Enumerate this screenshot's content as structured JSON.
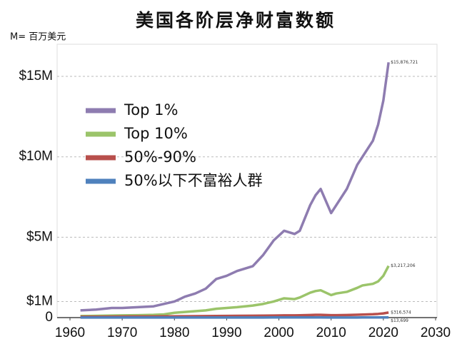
{
  "chart_data": {
    "type": "line",
    "title": "美国各阶层净财富数额",
    "subtitle": "M= 百万美元",
    "x": [
      1962,
      1965,
      1968,
      1970,
      1973,
      1976,
      1978,
      1980,
      1982,
      1984,
      1986,
      1988,
      1990,
      1992,
      1995,
      1997,
      1999,
      2001,
      2003,
      2004,
      2006,
      2007,
      2008,
      2010,
      2011,
      2013,
      2015,
      2016,
      2018,
      2019,
      2020,
      2021
    ],
    "xlim": [
      1960,
      2030
    ],
    "xticks": [
      1960,
      1970,
      1980,
      1990,
      2000,
      2010,
      2020,
      2030
    ],
    "ylim": [
      0,
      17000000
    ],
    "yticks": [
      0,
      {
        "value": 1000000,
        "label": "$1M"
      },
      {
        "value": 5000000,
        "label": "$5M"
      },
      {
        "value": 10000000,
        "label": "$10M"
      },
      {
        "value": 15000000,
        "label": "$15M"
      }
    ],
    "grid": true,
    "legend": "upper-left",
    "series": [
      {
        "name": "Top 1%",
        "color": "#8e7cb0",
        "values": [
          450000,
          500000,
          600000,
          600000,
          650000,
          700000,
          850000,
          1000000,
          1300000,
          1500000,
          1800000,
          2400000,
          2600000,
          2900000,
          3200000,
          3900000,
          4800000,
          5400000,
          5200000,
          5400000,
          7000000,
          7600000,
          8000000,
          6500000,
          7000000,
          8000000,
          9500000,
          10000000,
          11000000,
          12000000,
          13500000,
          15876721
        ],
        "value_labels": [
          null,
          null,
          null,
          null,
          null,
          null,
          null,
          null,
          null,
          null,
          null,
          null,
          null,
          null,
          null,
          null,
          null,
          null,
          null,
          null,
          null,
          null,
          null,
          null,
          null,
          null,
          null,
          null,
          null,
          null,
          null,
          "$15,876,721"
        ]
      },
      {
        "name": "Top 10%",
        "color": "#9bc46a",
        "values": [
          100000,
          110000,
          130000,
          140000,
          150000,
          170000,
          200000,
          300000,
          350000,
          400000,
          450000,
          550000,
          600000,
          650000,
          750000,
          850000,
          1000000,
          1200000,
          1150000,
          1250000,
          1550000,
          1650000,
          1700000,
          1400000,
          1500000,
          1600000,
          1850000,
          2000000,
          2100000,
          2250000,
          2600000,
          3217206
        ],
        "value_labels": [
          null,
          null,
          null,
          null,
          null,
          null,
          null,
          null,
          null,
          null,
          null,
          null,
          null,
          null,
          null,
          null,
          null,
          null,
          null,
          null,
          null,
          null,
          null,
          null,
          null,
          null,
          null,
          null,
          null,
          null,
          null,
          "$3,217,206"
        ]
      },
      {
        "name": "50%-90%",
        "color": "#b84f4c",
        "values": [
          50000,
          55000,
          60000,
          65000,
          70000,
          70000,
          75000,
          80000,
          85000,
          90000,
          95000,
          100000,
          105000,
          110000,
          115000,
          120000,
          130000,
          140000,
          140000,
          145000,
          160000,
          170000,
          170000,
          150000,
          150000,
          160000,
          180000,
          190000,
          210000,
          230000,
          260000,
          316574
        ],
        "value_labels": [
          null,
          null,
          null,
          null,
          null,
          null,
          null,
          null,
          null,
          null,
          null,
          null,
          null,
          null,
          null,
          null,
          null,
          null,
          null,
          null,
          null,
          null,
          null,
          null,
          null,
          null,
          null,
          null,
          null,
          null,
          null,
          "$316,574"
        ]
      },
      {
        "name": "50%以下不富裕人群",
        "color": "#4f81bd",
        "values": [
          5000,
          5000,
          5500,
          5500,
          6000,
          6000,
          6000,
          6500,
          6500,
          7000,
          7000,
          7000,
          7500,
          7500,
          8000,
          8000,
          8500,
          9000,
          9000,
          9000,
          9500,
          9500,
          9000,
          7000,
          7000,
          7500,
          8000,
          8500,
          9500,
          10000,
          11000,
          13699
        ],
        "value_labels": [
          null,
          null,
          null,
          null,
          null,
          null,
          null,
          null,
          null,
          null,
          null,
          null,
          null,
          null,
          null,
          null,
          null,
          null,
          null,
          null,
          null,
          null,
          null,
          null,
          null,
          null,
          null,
          null,
          null,
          null,
          null,
          "$13,699"
        ]
      }
    ]
  }
}
